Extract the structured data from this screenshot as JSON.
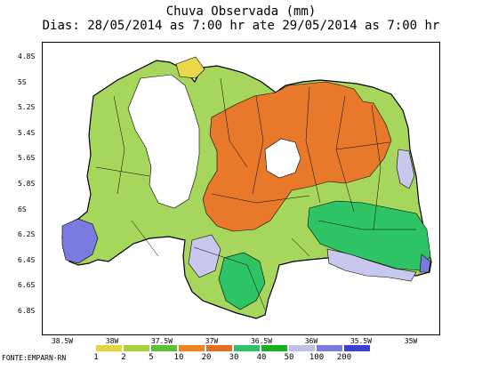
{
  "title": "Chuva Observada (mm)",
  "subtitle": "Dias: 28/05/2014 as 7:00 hr ate 29/05/2014 as 7:00 hr",
  "y_ticks": [
    "4.8S",
    "5S",
    "5.2S",
    "5.4S",
    "5.6S",
    "5.8S",
    "6S",
    "6.2S",
    "6.4S",
    "6.6S",
    "6.8S"
  ],
  "x_ticks": [
    "38.5W",
    "38W",
    "37.5W",
    "37W",
    "36.5W",
    "36W",
    "35.5W",
    "35W"
  ],
  "legend": {
    "labels": [
      "1",
      "2",
      "5",
      "10",
      "20",
      "30",
      "40",
      "50",
      "100",
      "200"
    ],
    "colors": [
      "#e3d53a",
      "#a8d139",
      "#5cc234",
      "#f28122",
      "#e56f1f",
      "#2ec466",
      "#12b31d",
      "#bfbfe8",
      "#7a7ae0",
      "#3d3dd8"
    ]
  },
  "source": "FONTE:EMPARN-RN",
  "colors": {
    "outside": "#ffffff",
    "dry": "#ffffff",
    "light_green": "#a6d75c",
    "green": "#5cc234",
    "orange": "#e8792b",
    "yellow": "#e8d84a",
    "teal": "#2ec466",
    "lavender": "#c8c8ee",
    "blue": "#7a7ae0",
    "border": "#000000"
  }
}
